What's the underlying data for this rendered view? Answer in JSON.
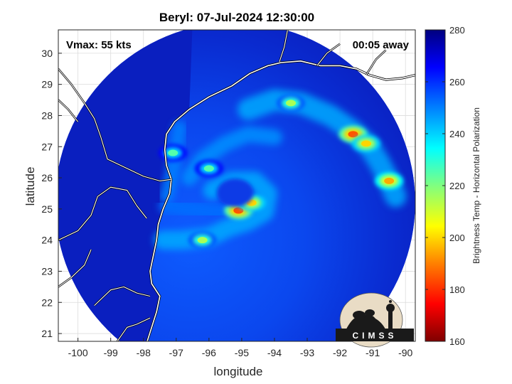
{
  "chart_data": {
    "type": "heatmap",
    "title": "Beryl: 07-Jul-2024 12:30:00",
    "xlabel": "longitude",
    "ylabel": "latitude",
    "xlim": [
      -100.6,
      -89.7
    ],
    "ylim": [
      20.75,
      30.75
    ],
    "xticks": [
      -100,
      -99,
      -98,
      -97,
      -96,
      -95,
      -94,
      -93,
      -92,
      -91,
      -90
    ],
    "yticks": [
      21,
      22,
      23,
      24,
      25,
      26,
      27,
      28,
      29,
      30
    ],
    "grid": true,
    "annotations": {
      "vmax": "Vmax: 55 kts",
      "time_offset": "00:05 away"
    },
    "colorbar": {
      "label": "Brightness Temp - Horizontal Polarization",
      "min": 160,
      "max": 280,
      "ticks": [
        160,
        180,
        200,
        220,
        240,
        260,
        280
      ],
      "colormap": [
        "#7f0000",
        "#ff0000",
        "#ff8000",
        "#ffff00",
        "#80ff80",
        "#00ffff",
        "#0080ff",
        "#0000ff",
        "#00007f"
      ]
    },
    "swath": {
      "center": [
        -95.2,
        25.2
      ],
      "radius_deg": 5.5
    },
    "storm_center": [
      -95.2,
      24.95
    ],
    "cold_features": [
      {
        "name": "eyewall core",
        "lon": -95.1,
        "lat": 24.95,
        "tb": 185
      },
      {
        "name": "eyewall east",
        "lon": -94.7,
        "lat": 25.2,
        "tb": 200
      },
      {
        "name": "south band",
        "lon": -96.2,
        "lat": 24.0,
        "tb": 215
      },
      {
        "name": "north-east band",
        "lon": -93.5,
        "lat": 28.4,
        "tb": 215
      },
      {
        "name": "eastern band 1",
        "lon": -91.6,
        "lat": 27.4,
        "tb": 185
      },
      {
        "name": "eastern band 2",
        "lon": -91.2,
        "lat": 27.1,
        "tb": 200
      },
      {
        "name": "eastern band 3",
        "lon": -90.5,
        "lat": 25.9,
        "tb": 195
      },
      {
        "name": "inner band north",
        "lon": -96.0,
        "lat": 26.3,
        "tb": 225
      },
      {
        "name": "coastal convection",
        "lon": -97.1,
        "lat": 26.8,
        "tb": 225
      }
    ]
  },
  "logo": {
    "text": "CIMSS"
  }
}
